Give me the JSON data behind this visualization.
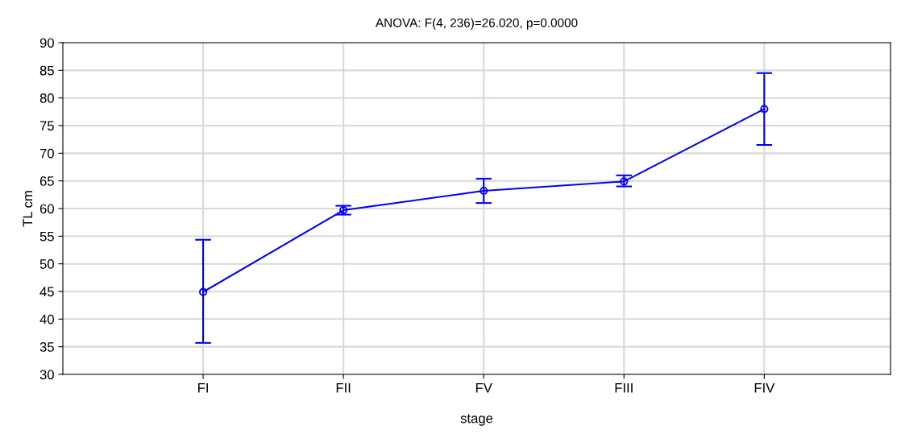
{
  "chart_data": {
    "type": "line",
    "title": "ANOVA: F(4, 236)=26.020, p=0.0000",
    "xlabel": "stage",
    "ylabel": "TL cm",
    "categories": [
      "FI",
      "FII",
      "FV",
      "FIII",
      "FIV"
    ],
    "series": [
      {
        "color": "#0000ff",
        "values": [
          44.9,
          59.7,
          63.2,
          64.9,
          78.0
        ],
        "errors": [
          [
            35.7,
            54.35
          ],
          [
            58.9,
            60.5
          ],
          [
            61.0,
            65.4
          ],
          [
            64.0,
            66.0
          ],
          [
            71.5,
            84.5
          ]
        ]
      }
    ],
    "ylim": [
      30,
      90
    ],
    "yticks": [
      30,
      35,
      40,
      45,
      50,
      55,
      60,
      65,
      70,
      75,
      80,
      85,
      90
    ],
    "grid": true,
    "marker": "circle",
    "line_style": "solid"
  }
}
